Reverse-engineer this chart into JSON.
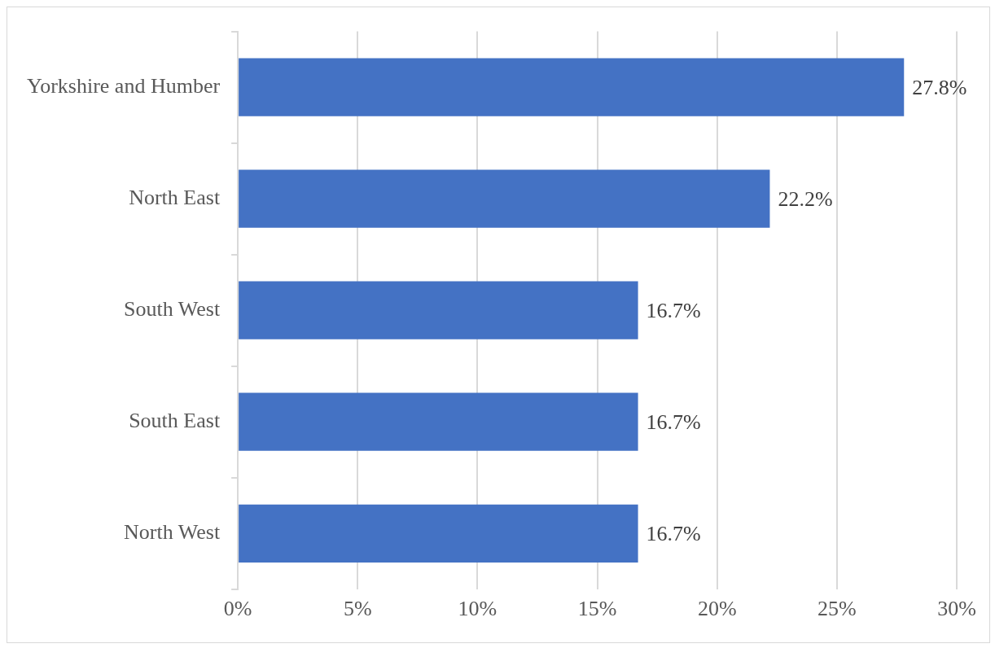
{
  "chart_data": {
    "type": "bar",
    "orientation": "horizontal",
    "categories": [
      "Yorkshire and Humber",
      "North East",
      "South West",
      "South East",
      "North West"
    ],
    "values": [
      27.8,
      22.2,
      16.7,
      16.7,
      16.7
    ],
    "color": "#4472c4",
    "value_labels": [
      "27.8%",
      "22.2%",
      "16.7%",
      "16.7%",
      "16.7%"
    ],
    "xlim": [
      0,
      30
    ],
    "xticks": [
      {
        "value": 0,
        "label": "0%"
      },
      {
        "value": 5,
        "label": "5%"
      },
      {
        "value": 10,
        "label": "10%"
      },
      {
        "value": 15,
        "label": "15%"
      },
      {
        "value": 20,
        "label": "20%"
      },
      {
        "value": 25,
        "label": "25%"
      },
      {
        "value": 30,
        "label": "30%"
      }
    ],
    "grid": "x",
    "legend": false
  }
}
